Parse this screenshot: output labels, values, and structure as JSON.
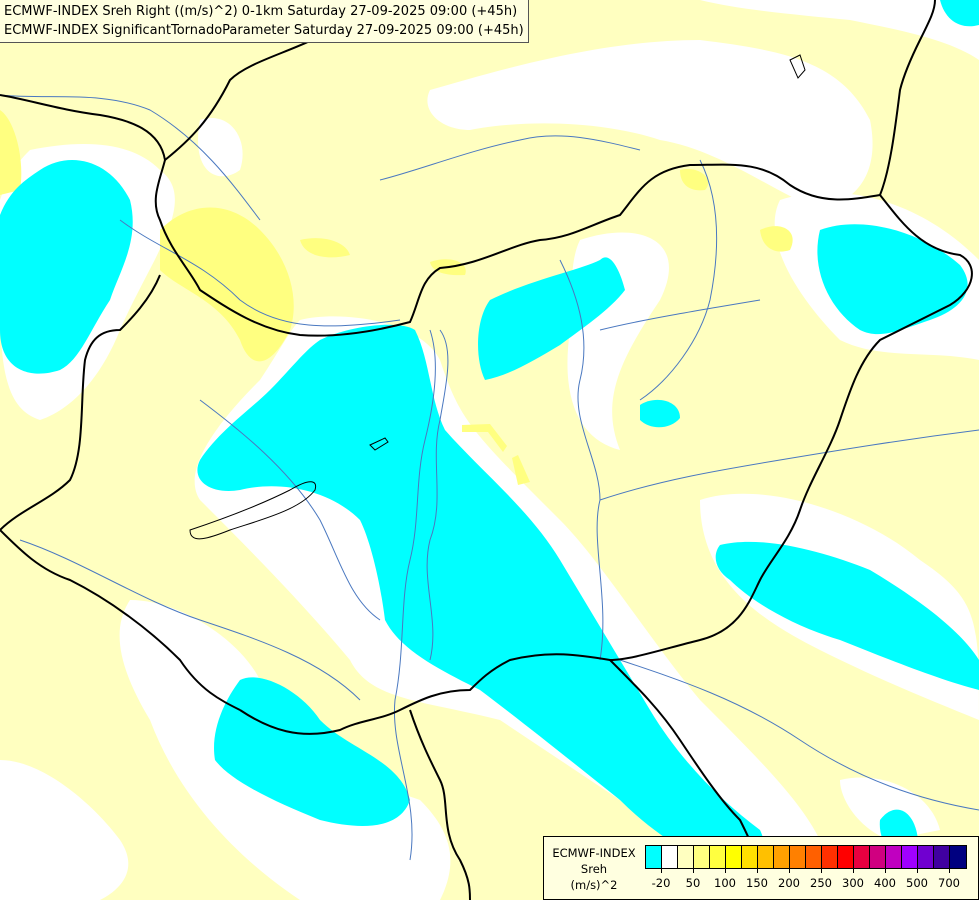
{
  "title": {
    "line1": "ECMWF-INDEX Sreh Right ((m/s)^2) 0-1km Saturday 27-09-2025 09:00 (+45h)",
    "line2": "ECMWF-INDEX SignificantTornadoParameter Saturday 27-09-2025 09:00 (+45h)"
  },
  "map": {
    "colors": {
      "background": "#ffffc0",
      "none": "#ffffff",
      "low_negative": "#00ffff",
      "moderate": "#ffff80",
      "border": "#000000",
      "river": "#4a78c0"
    }
  },
  "legend": {
    "line1": "ECMWF-INDEX",
    "line2": "Sreh",
    "line3": "(m/s)^2",
    "colors": [
      "#00ffff",
      "#ffffff",
      "#ffffc0",
      "#ffff80",
      "#ffff40",
      "#ffff00",
      "#ffe000",
      "#ffc000",
      "#ffa000",
      "#ff8000",
      "#ff6000",
      "#ff3000",
      "#ff0000",
      "#e80040",
      "#d00080",
      "#c000c0",
      "#a000ff",
      "#7000d0",
      "#4000a0",
      "#000080"
    ],
    "labels": [
      "-20",
      "50",
      "100",
      "150",
      "200",
      "250",
      "300",
      "400",
      "500",
      "700"
    ]
  }
}
